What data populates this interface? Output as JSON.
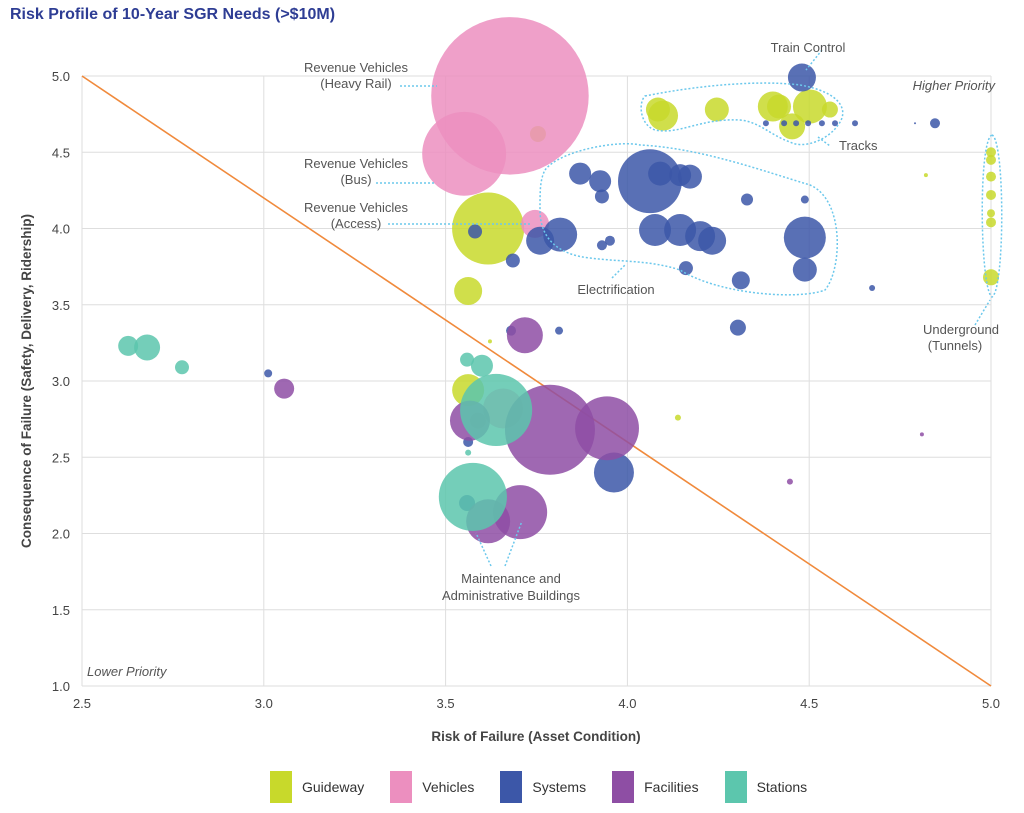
{
  "chart_data": {
    "type": "bubble",
    "title": "Risk Profile of 10-Year SGR Needs (>$10M)",
    "xlabel": "Risk of Failure (Asset Condition)",
    "ylabel": "Consequence of Failure (Safety, Delivery, Ridership)",
    "xlim": [
      2.5,
      5.0
    ],
    "ylim": [
      1.0,
      5.0
    ],
    "xticks": [
      "2.5",
      "3.0",
      "3.5",
      "4.0",
      "4.5",
      "5.0"
    ],
    "yticks": [
      "1.0",
      "1.5",
      "2.0",
      "2.5",
      "3.0",
      "3.5",
      "4.0",
      "4.5",
      "5.0"
    ],
    "grid": true,
    "legend_position": "bottom",
    "priority_line": [
      [
        2.5,
        5.0
      ],
      [
        5.0,
        1.0
      ]
    ],
    "priority_line_color": "#f08a3c",
    "labels": {
      "higher": "Higher Priority",
      "lower": "Lower Priority"
    },
    "annotations": {
      "heavy_rail": [
        "Revenue Vehicles",
        "(Heavy Rail)"
      ],
      "bus": [
        "Revenue Vehicles",
        "(Bus)"
      ],
      "access": [
        "Revenue Vehicles",
        "(Access)"
      ],
      "train_control": [
        "Train Control"
      ],
      "tracks": [
        "Tracks"
      ],
      "electrification": [
        "Electrification"
      ],
      "underground": [
        "Underground",
        "(Tunnels)"
      ],
      "maintenance": [
        "Maintenance and",
        "Administrative Buildings"
      ]
    },
    "series": [
      {
        "name": "Guideway",
        "color": "#c8d92b",
        "points": [
          [
            3.617,
            4.0,
            13
          ],
          [
            3.754,
            4.62,
            0.64
          ],
          [
            3.562,
            3.59,
            1.96
          ],
          [
            3.562,
            2.94,
            2.56
          ],
          [
            4.098,
            4.74,
            2.25
          ],
          [
            4.084,
            4.78,
            1.44
          ],
          [
            4.246,
            4.78,
            1.44
          ],
          [
            4.4,
            4.8,
            2.25
          ],
          [
            4.417,
            4.8,
            1.44
          ],
          [
            4.502,
            4.8,
            2.89
          ],
          [
            4.557,
            4.78,
            0.64
          ],
          [
            4.453,
            4.67,
            1.69
          ],
          [
            4.139,
            2.76,
            0.09
          ],
          [
            5.0,
            4.5,
            0.25
          ],
          [
            5.0,
            4.45,
            0.25
          ],
          [
            5.0,
            4.34,
            0.25
          ],
          [
            5.0,
            4.22,
            0.25
          ],
          [
            5.0,
            4.1,
            0.16
          ],
          [
            5.0,
            4.04,
            0.25
          ],
          [
            5.0,
            3.68,
            0.64
          ],
          [
            4.821,
            4.35,
            0.04
          ],
          [
            3.622,
            3.26,
            0.04
          ]
        ]
      },
      {
        "name": "Vehicles",
        "color": "#ec8fbf",
        "points": [
          [
            3.677,
            4.87,
            62
          ],
          [
            3.551,
            4.49,
            17.6
          ],
          [
            3.746,
            4.03,
            1.96
          ],
          [
            3.658,
            2.82,
            4
          ],
          [
            3.589,
            2.74,
            0.64
          ]
        ]
      },
      {
        "name": "Systems",
        "color": "#3c57a8",
        "points": [
          [
            4.48,
            4.99,
            1.96
          ],
          [
            4.381,
            4.69,
            0.09
          ],
          [
            4.431,
            4.69,
            0.09
          ],
          [
            4.464,
            4.69,
            0.09
          ],
          [
            4.497,
            4.69,
            0.09
          ],
          [
            4.535,
            4.69,
            0.09
          ],
          [
            4.571,
            4.69,
            0.09
          ],
          [
            4.626,
            4.69,
            0.09
          ],
          [
            4.846,
            4.69,
            0.25
          ],
          [
            4.791,
            4.69,
            0.01
          ],
          [
            4.062,
            4.31,
            10.2
          ],
          [
            3.87,
            4.36,
            1.21
          ],
          [
            3.925,
            4.31,
            1.21
          ],
          [
            3.93,
            4.21,
            0.49
          ],
          [
            4.145,
            4.35,
            1.21
          ],
          [
            4.172,
            4.34,
            1.44
          ],
          [
            4.09,
            4.36,
            1.44
          ],
          [
            4.076,
            3.99,
            2.56
          ],
          [
            4.145,
            3.99,
            2.56
          ],
          [
            4.2,
            3.95,
            2.25
          ],
          [
            4.233,
            3.92,
            1.96
          ],
          [
            3.815,
            3.96,
            2.89
          ],
          [
            3.76,
            3.92,
            1.96
          ],
          [
            3.685,
            3.79,
            0.49
          ],
          [
            3.581,
            3.98,
            0.49
          ],
          [
            3.952,
            3.92,
            0.25
          ],
          [
            3.93,
            3.89,
            0.25
          ],
          [
            4.329,
            4.19,
            0.36
          ],
          [
            4.488,
            4.19,
            0.16
          ],
          [
            4.488,
            3.94,
            4.41
          ],
          [
            4.488,
            3.73,
            1.44
          ],
          [
            4.312,
            3.66,
            0.81
          ],
          [
            4.161,
            3.74,
            0.49
          ],
          [
            4.304,
            3.35,
            0.64
          ],
          [
            4.673,
            3.61,
            0.09
          ],
          [
            3.68,
            3.33,
            0.25
          ],
          [
            3.812,
            3.33,
            0.16
          ],
          [
            3.012,
            3.05,
            0.16
          ],
          [
            3.963,
            2.4,
            4
          ],
          [
            3.559,
            2.2,
            0.64
          ],
          [
            3.562,
            2.6,
            0.25
          ]
        ]
      },
      {
        "name": "Facilities",
        "color": "#8e4ea4",
        "points": [
          [
            3.718,
            3.3,
            3.24
          ],
          [
            3.056,
            2.95,
            1
          ],
          [
            3.787,
            2.68,
            20.25
          ],
          [
            3.944,
            2.69,
            10.2
          ],
          [
            3.705,
            2.14,
            7.3
          ],
          [
            3.617,
            2.08,
            4.84
          ],
          [
            3.567,
            2.74,
            4
          ],
          [
            4.81,
            2.65,
            0.04
          ],
          [
            4.447,
            2.34,
            0.09
          ]
        ]
      },
      {
        "name": "Stations",
        "color": "#5cc6ad",
        "points": [
          [
            2.627,
            3.23,
            1
          ],
          [
            2.679,
            3.22,
            1.69
          ],
          [
            2.775,
            3.09,
            0.49
          ],
          [
            3.559,
            3.14,
            0.49
          ],
          [
            3.6,
            3.1,
            1.21
          ],
          [
            3.639,
            2.81,
            13
          ],
          [
            3.575,
            2.24,
            11.6
          ],
          [
            3.562,
            2.53,
            0.09
          ]
        ]
      }
    ]
  }
}
